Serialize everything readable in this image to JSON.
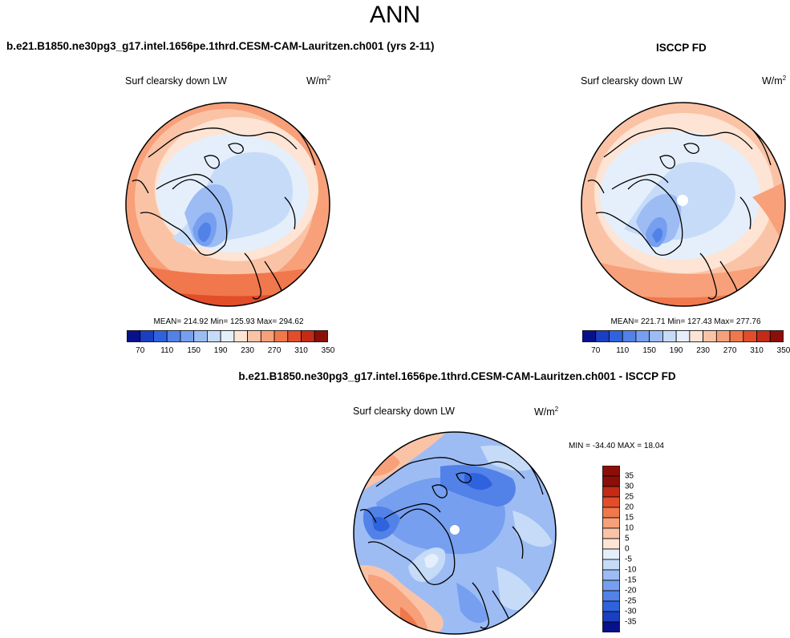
{
  "header": {
    "season": "ANN",
    "case_title": "b.e21.B1850.ne30pg3_g17.intel.1656pe.1thrd.CESM-CAM-Lauritzen.ch001 (yrs 2-11)",
    "obs_title": "ISCCP FD",
    "diff_title": "b.e21.B1850.ne30pg3_g17.intel.1656pe.1thrd.CESM-CAM-Lauritzen.ch001 - ISCCP FD"
  },
  "panels": {
    "model": {
      "variable": "Surf clearsky down LW",
      "units_base": "W/m",
      "units_exp": "2",
      "stats_text": "MEAN= 214.92  Min= 125.93  Max= 294.62"
    },
    "obs": {
      "variable": "Surf clearsky down LW",
      "units_base": "W/m",
      "units_exp": "2",
      "stats_text": "MEAN= 221.71  Min= 127.43  Max= 277.76"
    },
    "diff": {
      "variable": "Surf clearsky down LW",
      "units_base": "W/m",
      "units_exp": "2",
      "stats_text": "MIN = -34.40 MAX =  18.04"
    }
  },
  "chart_data": [
    {
      "type": "heatmap",
      "title": "Surf clearsky down LW",
      "projection": "north polar stereographic",
      "units": "W/m^2",
      "mean": 214.92,
      "min": 125.93,
      "max": 294.62,
      "colorbar_labels": [
        "70",
        "110",
        "150",
        "190",
        "230",
        "270",
        "310",
        "350"
      ],
      "levels": [
        70,
        90,
        110,
        130,
        150,
        170,
        190,
        210,
        230,
        250,
        270,
        290,
        310,
        330,
        350
      ]
    },
    {
      "type": "heatmap",
      "title": "Surf clearsky down LW",
      "projection": "north polar stereographic",
      "units": "W/m^2",
      "mean": 221.71,
      "min": 127.43,
      "max": 277.76,
      "colorbar_labels": [
        "70",
        "110",
        "150",
        "190",
        "230",
        "270",
        "310",
        "350"
      ],
      "levels": [
        70,
        90,
        110,
        130,
        150,
        170,
        190,
        210,
        230,
        250,
        270,
        290,
        310,
        330,
        350
      ]
    },
    {
      "type": "heatmap",
      "title": "Surf clearsky down LW",
      "projection": "north polar stereographic",
      "units": "W/m^2",
      "min": -34.4,
      "max": 18.04,
      "colorbar_labels": [
        "35",
        "30",
        "25",
        "20",
        "15",
        "10",
        "5",
        "0",
        "-5",
        "-10",
        "-15",
        "-20",
        "-25",
        "-30",
        "-35"
      ]
    }
  ],
  "colors": {
    "scale": [
      "#08108a",
      "#1a3fc2",
      "#2f63de",
      "#5282e8",
      "#769ff0",
      "#9dbcf4",
      "#c6dbf8",
      "#e5effb",
      "#fde4d4",
      "#fbc3a6",
      "#f7a079",
      "#f0784c",
      "#e24d2a",
      "#c32b15",
      "#8b0f08"
    ]
  }
}
